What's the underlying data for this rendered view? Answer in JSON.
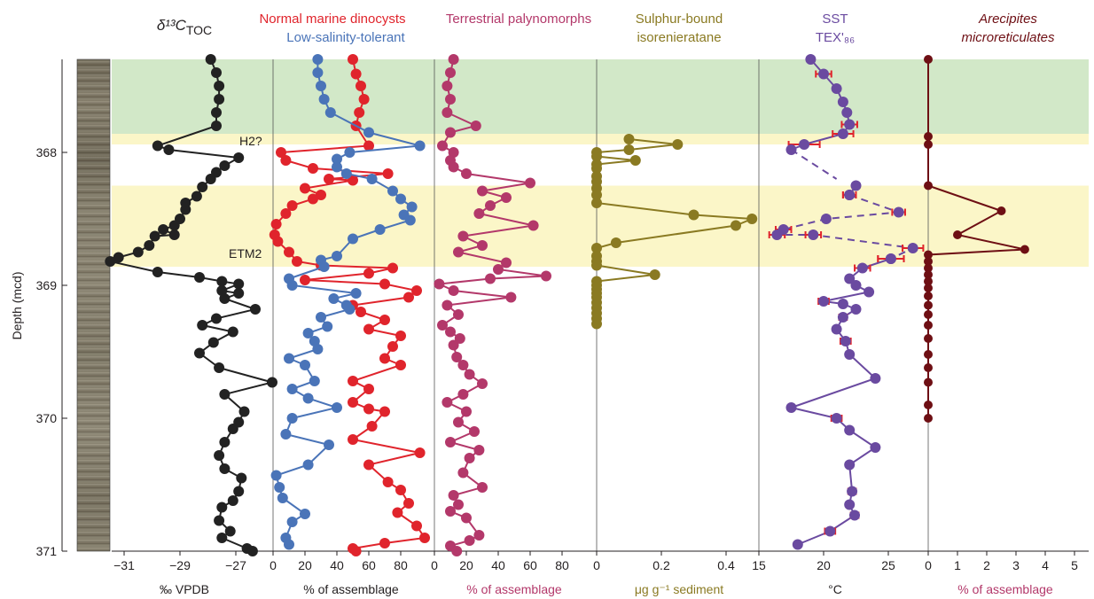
{
  "y_axis": {
    "label": "Depth (mcd)",
    "range": [
      367.3,
      371.0
    ],
    "ticks": [
      "368",
      "369",
      "370",
      "371"
    ]
  },
  "bands": {
    "green": {
      "from": 367.3,
      "to": 367.86,
      "color": "#d2e8c8"
    },
    "yellow": [
      {
        "from": 367.86,
        "to": 367.94,
        "color": "#fbf6c8"
      },
      {
        "from": 368.25,
        "to": 368.86,
        "color": "#fbf6c8"
      }
    ]
  },
  "event_labels": [
    {
      "text": "H2?",
      "depth": 367.96
    },
    {
      "text": "ETM2",
      "depth": 368.76
    }
  ],
  "colors": {
    "d13c": "#222222",
    "marine": "#e0242c",
    "lowsal": "#4a74b8",
    "terr": "#b3386a",
    "sulphur": "#8a7a22",
    "sst": "#6a4aa0",
    "sst_err": "#e0242c",
    "arecipites": "#6e0f14"
  },
  "panels": {
    "d13c": {
      "title": "δ¹³C",
      "title_sub": "TOC",
      "xlabel": "‰ VPDB",
      "xticks": [
        "−31",
        "−29",
        "−27"
      ],
      "xrange": [
        -32.2,
        -25.6
      ]
    },
    "dino": {
      "title_marine": "Normal marine dinocysts",
      "title_lowsal": "Low-salinity-tolerant",
      "xlabel": "% of assemblage",
      "xticks": [
        "0",
        "20",
        "40",
        "60",
        "80"
      ],
      "xrange": [
        0,
        100
      ]
    },
    "terr": {
      "title": "Terrestrial palynomorphs",
      "xlabel": "% of assemblage",
      "xticks": [
        "0",
        "20",
        "40",
        "60",
        "80"
      ],
      "xrange": [
        0,
        100
      ]
    },
    "sulphur": {
      "title_line1": "Sulphur-bound",
      "title_line2": "isorenieratane",
      "xlabel": "μg g⁻¹ sediment",
      "xticks": [
        "0",
        "0.2",
        "0.4"
      ],
      "xrange": [
        0,
        0.5
      ]
    },
    "sst": {
      "title_line1": "SST",
      "title_line2": "TEX'₈₆",
      "xlabel": "°C",
      "xticks": [
        "15",
        "20",
        "25"
      ],
      "xrange": [
        15,
        28
      ]
    },
    "arecipites": {
      "title_line1": "Arecipites",
      "title_line2": "microreticulates",
      "xlabel": "% of assemblage",
      "xticks": [
        "0",
        "1",
        "2",
        "3",
        "4",
        "5"
      ],
      "xrange": [
        0,
        5
      ]
    }
  },
  "chart_data": {
    "type": "line",
    "y_variable": "Depth (mcd)",
    "y_inverted": true,
    "series": [
      {
        "name": "δ¹³C TOC",
        "panel": "d13c",
        "style": "solid",
        "x": [
          -27.9,
          -27.7,
          -27.6,
          -27.6,
          -27.7,
          -27.7,
          -29.8,
          -29.4,
          -26.9,
          -27.4,
          -27.7,
          -27.9,
          -28.2,
          -28.4,
          -28.8,
          -28.8,
          -29.0,
          -29.2,
          -29.6,
          -29.2,
          -29.9,
          -30.1,
          -30.5,
          -31.2,
          -31.5,
          -29.8,
          -28.3,
          -27.5,
          -26.9,
          -27.5,
          -26.9,
          -27.4,
          -26.3,
          -27.7,
          -28.2,
          -27.1,
          -27.8,
          -28.3,
          -27.6,
          -25.7,
          -27.4,
          -26.7,
          -26.9,
          -27.1,
          -27.4,
          -27.6,
          -27.4,
          -26.8,
          -26.9,
          -27.1,
          -27.5,
          -27.6,
          -27.2,
          -27.5,
          -26.6,
          -26.4
        ],
        "y": [
          367.3,
          367.4,
          367.5,
          367.6,
          367.7,
          367.8,
          367.95,
          367.98,
          368.04,
          368.1,
          368.15,
          368.2,
          368.26,
          368.33,
          368.38,
          368.43,
          368.5,
          368.55,
          368.58,
          368.62,
          368.63,
          368.7,
          368.75,
          368.79,
          368.82,
          368.9,
          368.94,
          368.97,
          368.99,
          369.04,
          369.06,
          369.1,
          369.18,
          369.25,
          369.3,
          369.35,
          369.43,
          369.51,
          369.62,
          369.73,
          369.82,
          369.95,
          370.03,
          370.08,
          370.18,
          370.28,
          370.38,
          370.45,
          370.55,
          370.62,
          370.67,
          370.77,
          370.85,
          370.9,
          370.98,
          371.0
        ]
      },
      {
        "name": "Normal marine dinocysts",
        "panel": "dino",
        "style": "solid",
        "x": [
          50,
          52,
          55,
          57,
          54,
          52,
          60,
          5,
          8,
          25,
          72,
          35,
          50,
          20,
          30,
          25,
          12,
          8,
          2,
          1,
          3,
          10,
          15,
          30,
          75,
          60,
          20,
          70,
          90,
          85,
          50,
          55,
          70,
          60,
          80,
          75,
          70,
          80,
          50,
          60,
          50,
          60,
          70,
          62,
          50,
          92,
          60,
          72,
          80,
          85,
          78,
          90,
          95,
          70,
          50,
          52
        ],
        "y": [
          367.3,
          367.41,
          367.5,
          367.6,
          367.7,
          367.8,
          367.95,
          368.0,
          368.06,
          368.12,
          368.16,
          368.2,
          368.21,
          368.27,
          368.32,
          368.35,
          368.4,
          368.46,
          368.54,
          368.62,
          368.67,
          368.75,
          368.82,
          368.85,
          368.87,
          368.91,
          368.96,
          368.99,
          369.04,
          369.09,
          369.15,
          369.2,
          369.26,
          369.33,
          369.38,
          369.46,
          369.55,
          369.6,
          369.72,
          369.78,
          369.88,
          369.93,
          369.95,
          370.06,
          370.16,
          370.26,
          370.35,
          370.48,
          370.54,
          370.64,
          370.71,
          370.81,
          370.9,
          370.94,
          370.98,
          371.0
        ]
      },
      {
        "name": "Low-salinity-tolerant",
        "panel": "dino",
        "style": "solid",
        "x": [
          28,
          28,
          30,
          32,
          36,
          60,
          92,
          48,
          40,
          40,
          46,
          62,
          75,
          80,
          87,
          82,
          86,
          67,
          50,
          40,
          30,
          32,
          10,
          12,
          52,
          38,
          46,
          48,
          30,
          34,
          22,
          26,
          28,
          10,
          20,
          26,
          12,
          22,
          40,
          12,
          8,
          35,
          22,
          2,
          4,
          6,
          20,
          12,
          8,
          10
        ],
        "y": [
          367.3,
          367.4,
          367.5,
          367.6,
          367.7,
          367.85,
          367.95,
          368.0,
          368.05,
          368.11,
          368.16,
          368.2,
          368.29,
          368.35,
          368.41,
          368.47,
          368.51,
          368.58,
          368.65,
          368.78,
          368.81,
          368.86,
          368.95,
          369.0,
          369.06,
          369.1,
          369.15,
          369.18,
          369.24,
          369.31,
          369.36,
          369.42,
          369.48,
          369.55,
          369.6,
          369.72,
          369.78,
          369.85,
          369.92,
          370.0,
          370.12,
          370.2,
          370.35,
          370.43,
          370.52,
          370.6,
          370.72,
          370.78,
          370.9,
          370.95
        ]
      },
      {
        "name": "Terrestrial palynomorphs",
        "panel": "terr",
        "style": "solid",
        "x": [
          12,
          10,
          8,
          10,
          8,
          26,
          10,
          5,
          12,
          10,
          12,
          20,
          60,
          30,
          45,
          35,
          28,
          62,
          18,
          30,
          15,
          45,
          40,
          70,
          35,
          3,
          12,
          48,
          8,
          15,
          5,
          10,
          16,
          12,
          14,
          18,
          22,
          30,
          18,
          8,
          20,
          15,
          25,
          10,
          28,
          22,
          18,
          30,
          12,
          15,
          10,
          20,
          28,
          22,
          10,
          14
        ],
        "y": [
          367.3,
          367.4,
          367.5,
          367.6,
          367.7,
          367.8,
          367.85,
          367.95,
          368.0,
          368.06,
          368.11,
          368.16,
          368.23,
          368.29,
          368.34,
          368.4,
          368.46,
          368.55,
          368.63,
          368.7,
          368.75,
          368.83,
          368.88,
          368.93,
          368.95,
          368.99,
          369.04,
          369.09,
          369.15,
          369.22,
          369.3,
          369.35,
          369.4,
          369.45,
          369.54,
          369.6,
          369.67,
          369.74,
          369.82,
          369.88,
          369.95,
          370.03,
          370.1,
          370.18,
          370.24,
          370.3,
          370.41,
          370.52,
          370.58,
          370.65,
          370.7,
          370.75,
          370.88,
          370.92,
          370.96,
          371.0
        ]
      },
      {
        "name": "Sulphur-bound isorenieratane",
        "panel": "sulphur",
        "style": "solid",
        "x": [
          0.1,
          0.25,
          0.1,
          0.0,
          0.0,
          0.12,
          0.0,
          0.0,
          0.0,
          0.0,
          0.0,
          0.0,
          0.0,
          0.3,
          0.48,
          0.43,
          0.06,
          0.0,
          0.0,
          0.0,
          0.0,
          0.18,
          0.0,
          0.0,
          0.0,
          0.0,
          0.0,
          0.0,
          0.0,
          0.0,
          0.0,
          0.0
        ],
        "y": [
          367.9,
          367.94,
          367.98,
          368.0,
          368.03,
          368.06,
          368.09,
          368.12,
          368.18,
          368.22,
          368.27,
          368.32,
          368.38,
          368.47,
          368.5,
          368.55,
          368.68,
          368.72,
          368.78,
          368.82,
          368.85,
          368.92,
          368.97,
          369.0,
          369.03,
          369.06,
          369.09,
          369.13,
          369.17,
          369.21,
          369.25,
          369.29
        ]
      },
      {
        "name": "SST TEX'86",
        "panel": "sst",
        "style": "solid",
        "x": [
          19.0,
          20.0,
          21.0,
          21.5,
          21.8,
          22.0,
          21.5,
          18.5,
          17.5
        ],
        "y": [
          367.3,
          367.41,
          367.52,
          367.62,
          367.7,
          367.79,
          367.86,
          367.94,
          367.98
        ],
        "err": [
          0,
          0.6,
          0,
          0,
          0,
          0.6,
          0.8,
          1.2,
          0
        ]
      },
      {
        "name": "SST TEX'86 (interpolated)",
        "panel": "sst",
        "style": "dashed",
        "x": [
          17.5,
          21.0
        ],
        "y": [
          367.98,
          368.2
        ],
        "err": [
          0,
          0
        ]
      },
      {
        "name": "SST TEX'86 (peak)",
        "panel": "sst",
        "style": "solid",
        "x": [
          22.5,
          22.0
        ],
        "y": [
          368.25,
          368.32
        ],
        "err": [
          0,
          0.5
        ]
      },
      {
        "name": "SST TEX'86 (dashed segment 2)",
        "panel": "sst",
        "style": "dashed",
        "x": [
          22.0,
          25.8,
          20.2,
          16.9,
          16.4,
          19.2,
          26.9,
          25.2
        ],
        "y": [
          368.32,
          368.45,
          368.5,
          368.58,
          368.62,
          368.62,
          368.72,
          368.8
        ],
        "err": [
          0.5,
          0.5,
          0,
          0.6,
          0.6,
          0.6,
          0.8,
          1.0
        ]
      },
      {
        "name": "SST TEX'86 (lower)",
        "panel": "sst",
        "style": "solid",
        "x": [
          25.2,
          23.0,
          22.0,
          22.5,
          23.5,
          20.0,
          21.5,
          22.5,
          21.5,
          21.0,
          21.7,
          22.0,
          24.0,
          17.5,
          21.0,
          22.0,
          24.0,
          22.0,
          22.2,
          22.0,
          22.4,
          20.5,
          18.0
        ],
        "y": [
          368.8,
          368.87,
          368.95,
          369.0,
          369.05,
          369.12,
          369.14,
          369.18,
          369.24,
          369.33,
          369.42,
          369.52,
          369.7,
          369.92,
          370.0,
          370.09,
          370.22,
          370.35,
          370.55,
          370.65,
          370.73,
          370.85,
          370.95
        ],
        "err": [
          1.0,
          0.6,
          0,
          0,
          0,
          0.4,
          0,
          0,
          0.3,
          0,
          0.4,
          0,
          0,
          0,
          0.4,
          0,
          0,
          0,
          0.3,
          0.2,
          0.3,
          0.4,
          0
        ]
      },
      {
        "name": "Arecipites microreticulates",
        "panel": "arecipites",
        "style": "solid",
        "x": [
          0,
          0,
          0,
          0,
          2.5,
          1.0,
          3.3,
          0,
          0,
          0,
          0,
          0,
          0,
          0,
          0,
          0,
          0,
          0,
          0,
          0,
          0,
          0,
          0
        ],
        "y": [
          367.3,
          367.88,
          367.94,
          368.25,
          368.44,
          368.62,
          368.73,
          368.77,
          368.82,
          368.87,
          368.92,
          368.97,
          369.02,
          369.08,
          369.15,
          369.22,
          369.3,
          369.4,
          369.52,
          369.62,
          369.73,
          369.9,
          370.0
        ]
      }
    ]
  }
}
